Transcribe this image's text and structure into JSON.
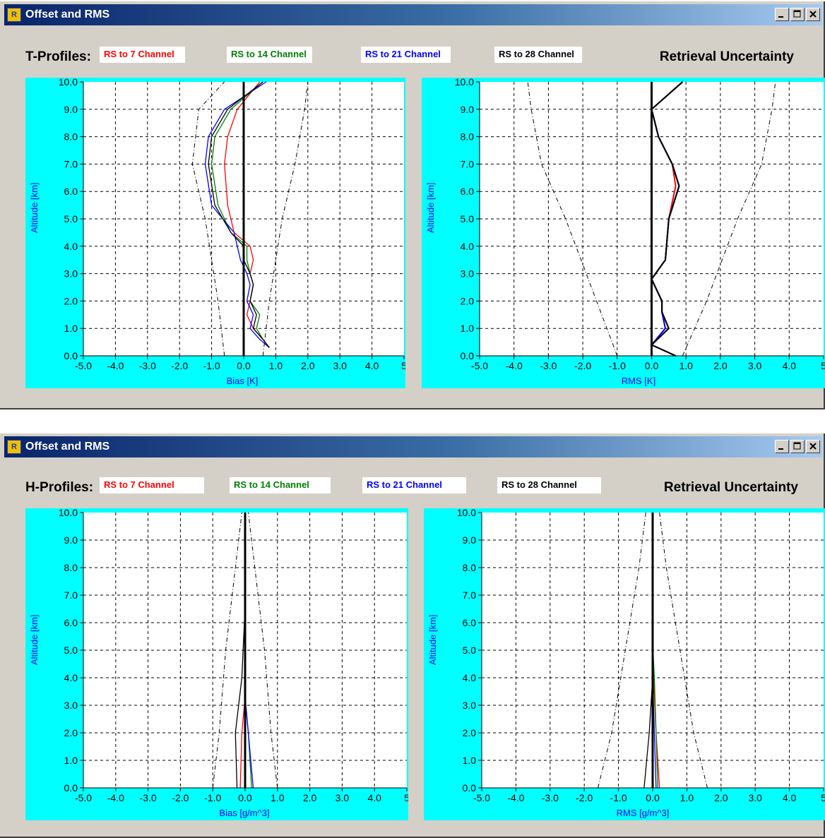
{
  "windows": [
    {
      "title": "Offset and RMS",
      "profile_label": "T-Profiles:",
      "retrieval_label": "Retrieval Uncertainty",
      "legend": [
        {
          "label": "RS to 7 Channel",
          "color": "#ff0000"
        },
        {
          "label": "RS to 14 Channel",
          "color": "#008000"
        },
        {
          "label": "RS to 21 Channel",
          "color": "#0000ff"
        },
        {
          "label": "RS to 28 Channel",
          "color": "#000000"
        }
      ]
    },
    {
      "title": "Offset and RMS",
      "profile_label": "H-Profiles:",
      "retrieval_label": "Retrieval Uncertainty",
      "legend": [
        {
          "label": "RS to 7 Channel",
          "color": "#ff0000"
        },
        {
          "label": "RS to 14 Channel",
          "color": "#008000"
        },
        {
          "label": "RS to 21 Channel",
          "color": "#0000ff"
        },
        {
          "label": "RS to 28 Channel",
          "color": "#000000"
        }
      ]
    }
  ],
  "chart_data": [
    {
      "type": "line",
      "panel": "T-Profiles bias",
      "xlabel": "Bias [K]",
      "ylabel": "Altitude [km]",
      "xlim": [
        -5,
        5
      ],
      "ylim": [
        0,
        10
      ],
      "x_ticks": [
        "-5.0",
        "-4.0",
        "-3.0",
        "-2.0",
        "-1.0",
        "0.0",
        "1.0",
        "2.0",
        "3.0",
        "4.0",
        "5"
      ],
      "y_ticks": [
        "0.0",
        "1.0",
        "2.0",
        "3.0",
        "4.0",
        "5.0",
        "6.0",
        "7.0",
        "8.0",
        "9.0",
        "10.0"
      ],
      "grid": true,
      "series": [
        {
          "name": "RS to 7 Channel",
          "color": "#ff0000",
          "x": [
            0.8,
            0.6,
            0.3,
            0.1,
            0.2,
            0.3,
            0.2,
            0.3,
            0.2,
            -0.3,
            -0.5,
            -0.6,
            -0.5,
            -0.2,
            0.5
          ],
          "y": [
            0.3,
            0.6,
            1.0,
            1.5,
            2.0,
            2.6,
            3.0,
            3.5,
            4.0,
            4.5,
            5.5,
            7.0,
            8.0,
            9.0,
            10.0
          ]
        },
        {
          "name": "RS to 14 Channel",
          "color": "#008000",
          "x": [
            0.8,
            0.6,
            0.4,
            0.5,
            0.2,
            0.3,
            0.2,
            0.1,
            0.1,
            -0.4,
            -0.8,
            -1.0,
            -0.9,
            -0.4,
            0.6
          ],
          "y": [
            0.3,
            0.6,
            1.0,
            1.5,
            2.0,
            2.6,
            3.0,
            3.5,
            4.0,
            4.5,
            5.5,
            7.0,
            8.0,
            9.0,
            10.0
          ]
        },
        {
          "name": "RS to 21 Channel",
          "color": "#0000ff",
          "x": [
            0.8,
            0.5,
            0.2,
            0.3,
            0.1,
            0.2,
            0.1,
            -0.1,
            -0.2,
            -0.3,
            -1.0,
            -1.2,
            -1.1,
            -0.6,
            0.7
          ],
          "y": [
            0.3,
            0.6,
            1.0,
            1.5,
            2.0,
            2.6,
            3.0,
            3.5,
            4.0,
            4.5,
            5.5,
            7.0,
            8.0,
            9.0,
            10.0
          ]
        },
        {
          "name": "RS to 28 Channel",
          "color": "#000000",
          "x": [
            0.8,
            0.6,
            0.3,
            0.4,
            0.2,
            0.3,
            0.2,
            0.0,
            0.0,
            -0.4,
            -0.9,
            -1.1,
            -1.0,
            -0.5,
            0.6
          ],
          "y": [
            0.3,
            0.6,
            1.0,
            1.5,
            2.0,
            2.6,
            3.0,
            3.5,
            4.0,
            4.5,
            5.5,
            7.0,
            8.0,
            9.0,
            10.0
          ]
        }
      ],
      "envelope": [
        {
          "x": [
            -0.6,
            -0.8,
            -1.2,
            -1.6,
            -1.4,
            -0.6
          ],
          "y": [
            0,
            2,
            5,
            7,
            9,
            10
          ]
        },
        {
          "x": [
            0.6,
            0.8,
            1.2,
            1.6,
            1.9,
            2.0
          ],
          "y": [
            0,
            2,
            5,
            7,
            9,
            10
          ]
        }
      ]
    },
    {
      "type": "line",
      "panel": "T-Profiles rms",
      "xlabel": "RMS [K]",
      "ylabel": "Altitude [km]",
      "xlim": [
        -5,
        5
      ],
      "ylim": [
        0,
        10
      ],
      "x_ticks": [
        "-5.0",
        "-4.0",
        "-3.0",
        "-2.0",
        "-1.0",
        "0.0",
        "1.0",
        "2.0",
        "3.0",
        "4.0",
        "5"
      ],
      "y_ticks": [
        "0.0",
        "1.0",
        "2.0",
        "3.0",
        "4.0",
        "5.0",
        "6.0",
        "7.0",
        "8.0",
        "9.0",
        "10.0"
      ],
      "grid": true,
      "series": [
        {
          "name": "RS to 7 Channel",
          "color": "#ff0000",
          "x": [
            0.7,
            0.0,
            0.4,
            0.3,
            0.3,
            0.0,
            0.4,
            0.5,
            0.7,
            0.6,
            0.2,
            0.0,
            0.9
          ],
          "y": [
            0.0,
            0.4,
            1.0,
            1.6,
            2.0,
            2.8,
            3.5,
            5.0,
            6.2,
            7.0,
            8.0,
            9.0,
            10.0
          ]
        },
        {
          "name": "RS to 14 Channel",
          "color": "#008000",
          "x": [
            0.7,
            0.0,
            0.5,
            0.3,
            0.3,
            0.0,
            0.4,
            0.5,
            0.8,
            0.6,
            0.2,
            0.0,
            0.9
          ],
          "y": [
            0.0,
            0.4,
            1.0,
            1.6,
            2.0,
            2.8,
            3.5,
            5.0,
            6.2,
            7.0,
            8.0,
            9.0,
            10.0
          ]
        },
        {
          "name": "RS to 21 Channel",
          "color": "#0000ff",
          "x": [
            0.7,
            0.0,
            0.4,
            0.3,
            0.3,
            0.0,
            0.4,
            0.5,
            0.8,
            0.6,
            0.2,
            0.0,
            0.9
          ],
          "y": [
            0.0,
            0.4,
            1.0,
            1.6,
            2.0,
            2.8,
            3.5,
            5.0,
            6.2,
            7.0,
            8.0,
            9.0,
            10.0
          ]
        },
        {
          "name": "RS to 28 Channel",
          "color": "#000000",
          "x": [
            0.7,
            0.0,
            0.5,
            0.3,
            0.3,
            0.0,
            0.4,
            0.5,
            0.8,
            0.6,
            0.2,
            0.0,
            0.9
          ],
          "y": [
            0.0,
            0.4,
            1.0,
            1.6,
            2.0,
            2.8,
            3.5,
            5.0,
            6.2,
            7.0,
            8.0,
            9.0,
            10.0
          ]
        }
      ],
      "envelope": [
        {
          "x": [
            -1.0,
            -1.6,
            -2.5,
            -3.2,
            -3.5,
            -3.6
          ],
          "y": [
            0,
            2,
            5,
            7,
            9,
            10
          ]
        },
        {
          "x": [
            0.9,
            1.6,
            2.5,
            3.2,
            3.5,
            3.6
          ],
          "y": [
            0,
            2,
            5,
            7,
            9,
            10
          ]
        }
      ]
    },
    {
      "type": "line",
      "panel": "H-Profiles bias",
      "xlabel": "Bias [g/m^3]",
      "ylabel": "Altitude [km]",
      "xlim": [
        -5,
        5
      ],
      "ylim": [
        0,
        10
      ],
      "x_ticks": [
        "-5.0",
        "-4.0",
        "-3.0",
        "-2.0",
        "-1.0",
        "0.0",
        "1.0",
        "2.0",
        "3.0",
        "4.0",
        "5"
      ],
      "y_ticks": [
        "0.0",
        "1.0",
        "2.0",
        "3.0",
        "4.0",
        "5.0",
        "6.0",
        "7.0",
        "8.0",
        "9.0",
        "10.0"
      ],
      "grid": true,
      "series": [
        {
          "name": "RS to 7 Channel",
          "color": "#ff0000",
          "x": [
            -0.15,
            -0.1,
            0.0,
            0.0,
            0.0
          ],
          "y": [
            0.0,
            2.0,
            3.3,
            5.0,
            10.0
          ]
        },
        {
          "name": "RS to 14 Channel",
          "color": "#008000",
          "x": [
            0.2,
            0.1,
            0.0,
            0.0,
            0.0
          ],
          "y": [
            0.0,
            2.0,
            3.3,
            5.0,
            10.0
          ]
        },
        {
          "name": "RS to 21 Channel",
          "color": "#0000ff",
          "x": [
            0.25,
            0.1,
            0.0,
            0.0,
            0.0
          ],
          "y": [
            0.0,
            2.0,
            3.3,
            5.0,
            10.0
          ]
        },
        {
          "name": "RS to 28 Channel",
          "color": "#000000",
          "x": [
            -0.25,
            -0.3,
            -0.1,
            0.0,
            0.0
          ],
          "y": [
            0.0,
            2.0,
            4.0,
            6.6,
            10.0
          ]
        }
      ],
      "envelope": [
        {
          "x": [
            -1.0,
            -0.8,
            -0.6,
            -0.3,
            -0.1
          ],
          "y": [
            0,
            2,
            5,
            8,
            10
          ]
        },
        {
          "x": [
            1.0,
            0.8,
            0.6,
            0.3,
            0.1
          ],
          "y": [
            0,
            2,
            5,
            8,
            10
          ]
        }
      ]
    },
    {
      "type": "line",
      "panel": "H-Profiles rms",
      "xlabel": "RMS [g/m^3]",
      "ylabel": "Altitude [km]",
      "xlim": [
        -5,
        5
      ],
      "ylim": [
        0,
        10
      ],
      "x_ticks": [
        "-5.0",
        "-4.0",
        "-3.0",
        "-2.0",
        "-1.0",
        "0.0",
        "1.0",
        "2.0",
        "3.0",
        "4.0",
        "5"
      ],
      "y_ticks": [
        "0.0",
        "1.0",
        "2.0",
        "3.0",
        "4.0",
        "5.0",
        "6.0",
        "7.0",
        "8.0",
        "9.0",
        "10.0"
      ],
      "grid": true,
      "series": [
        {
          "name": "RS to 7 Channel",
          "color": "#ff0000",
          "x": [
            0.2,
            0.1,
            0.05,
            0.0,
            0.0
          ],
          "y": [
            0.0,
            2.0,
            3.3,
            5.0,
            10.0
          ]
        },
        {
          "name": "RS to 14 Channel",
          "color": "#008000",
          "x": [
            0.15,
            0.1,
            0.05,
            0.0,
            0.0
          ],
          "y": [
            0.0,
            2.0,
            4.0,
            5.3,
            10.0
          ]
        },
        {
          "name": "RS to 21 Channel",
          "color": "#0000ff",
          "x": [
            0.1,
            0.05,
            0.0,
            0.0,
            0.0
          ],
          "y": [
            0.0,
            2.0,
            4.0,
            5.0,
            10.0
          ]
        },
        {
          "name": "RS to 28 Channel",
          "color": "#000000",
          "x": [
            -0.25,
            -0.1,
            0.0,
            0.0,
            0.0
          ],
          "y": [
            0.0,
            2.0,
            4.0,
            6.6,
            10.0
          ]
        }
      ],
      "envelope": [
        {
          "x": [
            -1.6,
            -1.2,
            -0.8,
            -0.4,
            -0.2
          ],
          "y": [
            0,
            2,
            5,
            8,
            10
          ]
        },
        {
          "x": [
            1.6,
            1.2,
            0.8,
            0.4,
            0.2
          ],
          "y": [
            0,
            2,
            5,
            8,
            10
          ]
        }
      ]
    }
  ]
}
